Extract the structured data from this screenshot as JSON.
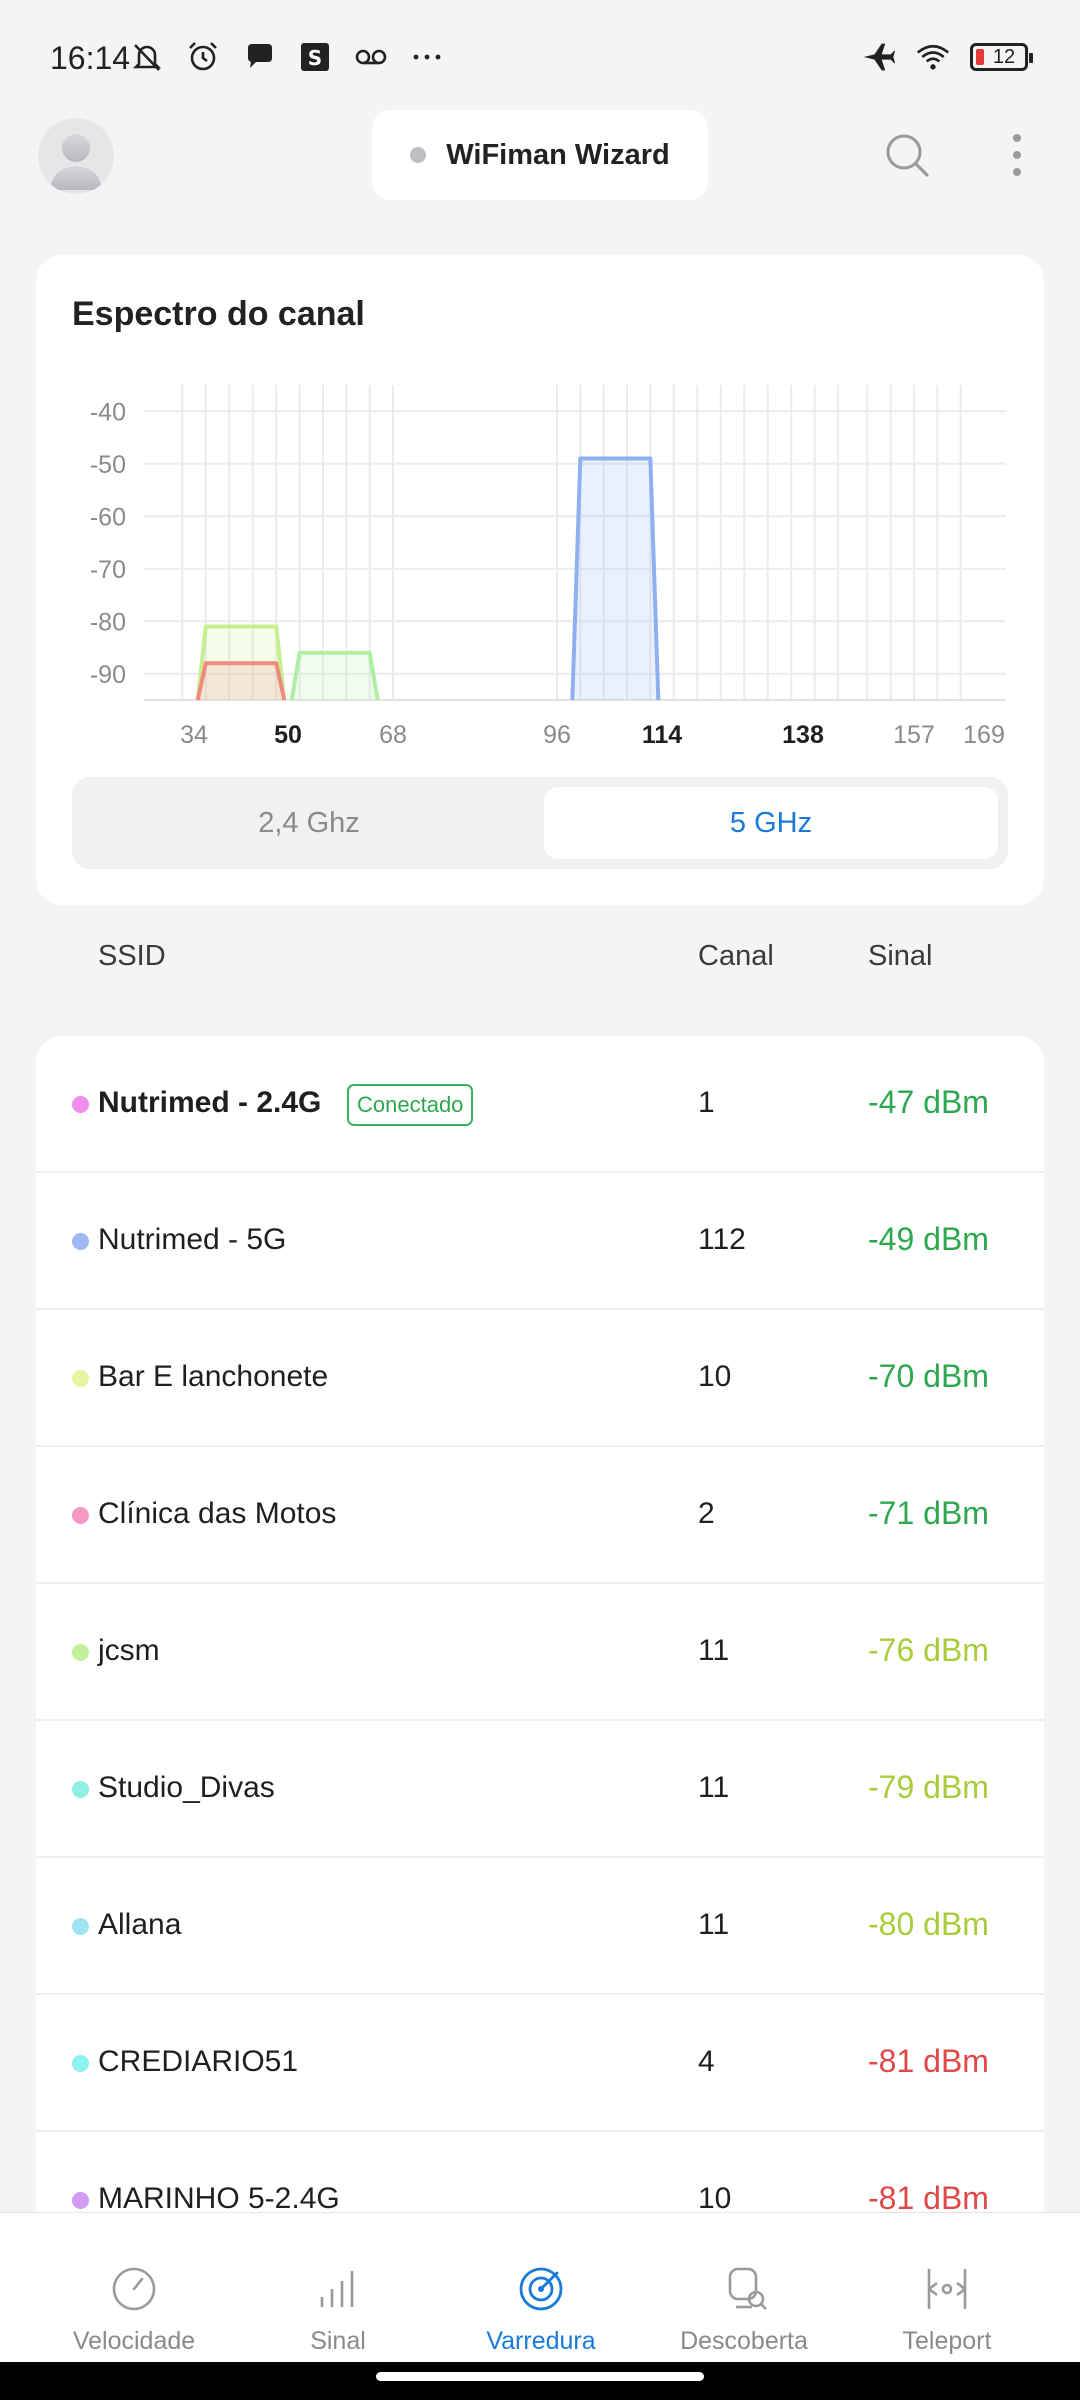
{
  "status_bar": {
    "time": "16:14",
    "battery_level": "12",
    "left_icons": [
      "mute-icon",
      "alarm-icon",
      "chat-icon",
      "s-app-icon",
      "voicemail-icon",
      "more-dots-icon"
    ],
    "right_icons": [
      "airplane-icon",
      "wifi-icon",
      "battery-icon"
    ]
  },
  "app_bar": {
    "title": "WiFiman Wizard"
  },
  "spectrum": {
    "title": "Espectro do canal",
    "y_ticks": [
      "-40",
      "-50",
      "-60",
      "-70",
      "-80",
      "-90"
    ],
    "x_ticks": [
      {
        "label": "34",
        "bold": false
      },
      {
        "label": "50",
        "bold": true
      },
      {
        "label": "68",
        "bold": false
      },
      {
        "label": "96",
        "bold": false
      },
      {
        "label": "114",
        "bold": true
      },
      {
        "label": "138",
        "bold": true
      },
      {
        "label": "157",
        "bold": false
      },
      {
        "label": "169",
        "bold": false
      }
    ],
    "band_24_label": "2,4 Ghz",
    "band_5_label": "5 GHz",
    "selected_band": "5 GHz"
  },
  "chart_data": {
    "type": "area",
    "title": "Espectro do canal",
    "ylim": [
      -95,
      -35
    ],
    "y_ticks": [
      -40,
      -50,
      -60,
      -70,
      -80,
      -90
    ],
    "x_ticks": [
      34,
      50,
      68,
      96,
      114,
      138,
      157,
      169
    ],
    "series": [
      {
        "channel_start": 36,
        "channel_end": 48,
        "dbm": -81,
        "color": "#c6f08c"
      },
      {
        "channel_start": 36,
        "channel_end": 48,
        "dbm": -88,
        "color": "#f08a80"
      },
      {
        "channel_start": 52,
        "channel_end": 64,
        "dbm": -86,
        "color": "#aef0a0"
      },
      {
        "channel_start": 100,
        "channel_end": 112,
        "dbm": -49,
        "color": "#8fb0f0"
      }
    ]
  },
  "table": {
    "col_ssid": "SSID",
    "col_canal": "Canal",
    "col_sinal": "Sinal",
    "rows": [
      {
        "ssid": "Nutrimed - 2.4G",
        "badge": "Conectado",
        "canal": "1",
        "sinal": "-47 dBm",
        "dot": "#f08ef0",
        "sinal_color": "#2ea84f",
        "bold": true
      },
      {
        "ssid": "Nutrimed - 5G",
        "badge": "",
        "canal": "112",
        "sinal": "-49 dBm",
        "dot": "#9fb7f2",
        "sinal_color": "#2ea84f",
        "bold": false
      },
      {
        "ssid": "Bar E lanchonete",
        "badge": "",
        "canal": "10",
        "sinal": "-70 dBm",
        "dot": "#e6f5a0",
        "sinal_color": "#2ea84f",
        "bold": false
      },
      {
        "ssid": "Clínica das Motos",
        "badge": "",
        "canal": "2",
        "sinal": "-71 dBm",
        "dot": "#f59ac4",
        "sinal_color": "#2ea84f",
        "bold": false
      },
      {
        "ssid": "jcsm",
        "badge": "",
        "canal": "11",
        "sinal": "-76 dBm",
        "dot": "#c2f09a",
        "sinal_color": "#a8cc3a",
        "bold": false
      },
      {
        "ssid": "Studio_Divas",
        "badge": "",
        "canal": "11",
        "sinal": "-79 dBm",
        "dot": "#8ef0e2",
        "sinal_color": "#a8cc3a",
        "bold": false
      },
      {
        "ssid": "Allana",
        "badge": "",
        "canal": "11",
        "sinal": "-80 dBm",
        "dot": "#9fe4f2",
        "sinal_color": "#a8cc3a",
        "bold": false
      },
      {
        "ssid": "CREDIARIO51",
        "badge": "",
        "canal": "4",
        "sinal": "-81 dBm",
        "dot": "#8ef2f2",
        "sinal_color": "#e04848",
        "bold": false
      },
      {
        "ssid": "MARINHO 5-2.4G",
        "badge": "",
        "canal": "10",
        "sinal": "-81 dBm",
        "dot": "#d29af2",
        "sinal_color": "#e04848",
        "bold": false
      }
    ]
  },
  "bottom_nav": {
    "items": [
      {
        "label": "Velocidade",
        "icon": "speedometer-icon"
      },
      {
        "label": "Sinal",
        "icon": "signal-bars-icon"
      },
      {
        "label": "Varredura",
        "icon": "radar-icon"
      },
      {
        "label": "Descoberta",
        "icon": "discovery-icon"
      },
      {
        "label": "Teleport",
        "icon": "teleport-icon"
      }
    ],
    "active": "Varredura"
  }
}
